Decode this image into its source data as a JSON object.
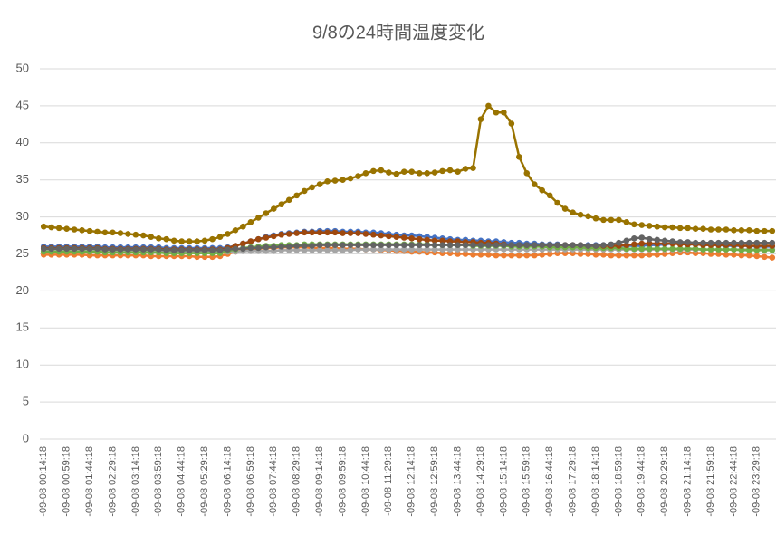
{
  "chart_data": {
    "type": "line",
    "title": "9/8の24時間温度変化",
    "categories": [
      "-09-08 00:14:18",
      null,
      null,
      "-09-08 00:59:18",
      null,
      null,
      "-09-08 01:44:18",
      null,
      null,
      "-09-08 02:29:18",
      null,
      null,
      "-09-08 03:14:18",
      null,
      null,
      "-09-08 03:59:18",
      null,
      null,
      "-09-08 04:44:18",
      null,
      null,
      "-09-08 05:29:18",
      null,
      null,
      "-09-08 06:14:18",
      null,
      null,
      "-09-08 06:59:18",
      null,
      null,
      "-09-08 07:44:18",
      null,
      null,
      "-09-08 08:29:18",
      null,
      null,
      "-09-08 09:14:18",
      null,
      null,
      "-09-08 09:59:18",
      null,
      null,
      "-09-08 10:44:18",
      null,
      null,
      "-09-08 11:29:18",
      null,
      null,
      "-09-08 12:14:18",
      null,
      null,
      "-09-08 12:59:18",
      null,
      null,
      "-09-08 13:44:18",
      null,
      null,
      "-09-08 14:29:18",
      null,
      null,
      "-09-08 15:14:18",
      null,
      null,
      "-09-08 15:59:18",
      null,
      null,
      "-09-08 16:44:18",
      null,
      null,
      "-09-08 17:29:18",
      null,
      null,
      "-09-08 18:14:18",
      null,
      null,
      "-09-08 18:59:18",
      null,
      null,
      "-09-08 19:44:18",
      null,
      null,
      "-09-08 20:29:18",
      null,
      null,
      "-09-08 21:14:18",
      null,
      null,
      "-09-08 21:59:18",
      null,
      null,
      "-09-08 22:44:18",
      null,
      null,
      "-09-08 23:29:18",
      null,
      null
    ],
    "ylim": [
      0,
      50
    ],
    "yticks": [
      0,
      5,
      10,
      15,
      20,
      25,
      30,
      35,
      40,
      45,
      50
    ],
    "grid": true,
    "series": [
      {
        "color": "#4472c4",
        "values": [
          26.0,
          26.0,
          26.0,
          26.0,
          26.0,
          26.0,
          26.0,
          26.0,
          25.9,
          25.9,
          25.9,
          25.9,
          25.9,
          25.9,
          25.9,
          25.9,
          25.8,
          25.8,
          25.8,
          25.8,
          25.8,
          25.8,
          25.8,
          25.8,
          25.9,
          26.1,
          26.4,
          26.7,
          27.0,
          27.3,
          27.5,
          27.7,
          27.8,
          27.9,
          28.0,
          28.0,
          28.1,
          28.1,
          28.1,
          28.0,
          28.0,
          28.0,
          27.9,
          27.9,
          27.8,
          27.7,
          27.6,
          27.5,
          27.5,
          27.4,
          27.3,
          27.2,
          27.1,
          27.0,
          26.9,
          26.9,
          26.8,
          26.8,
          26.7,
          26.7,
          26.6,
          26.5,
          26.5,
          26.4,
          26.4,
          26.3,
          26.3,
          26.3,
          26.2,
          26.2,
          26.2,
          26.2,
          26.2,
          26.2,
          26.1,
          26.1,
          26.1,
          26.1,
          26.1,
          26.2,
          26.2,
          26.3,
          26.4,
          26.4,
          26.3,
          26.3,
          26.2,
          26.2,
          26.2,
          26.1,
          26.1,
          26.1,
          26.1,
          26.0,
          26.0,
          26.0
        ]
      },
      {
        "color": "#ed7d31",
        "values": [
          24.9,
          24.9,
          24.9,
          24.9,
          24.9,
          24.9,
          24.8,
          24.8,
          24.8,
          24.8,
          24.8,
          24.8,
          24.8,
          24.8,
          24.7,
          24.7,
          24.7,
          24.7,
          24.7,
          24.7,
          24.6,
          24.6,
          24.6,
          24.7,
          25.0,
          25.3,
          25.5,
          25.6,
          25.7,
          25.8,
          25.8,
          25.9,
          25.9,
          25.9,
          25.9,
          25.8,
          25.8,
          25.8,
          25.8,
          25.7,
          25.7,
          25.7,
          25.6,
          25.6,
          25.5,
          25.5,
          25.4,
          25.4,
          25.3,
          25.3,
          25.2,
          25.2,
          25.1,
          25.1,
          25.0,
          25.0,
          24.9,
          24.9,
          24.9,
          24.8,
          24.8,
          24.8,
          24.8,
          24.8,
          24.8,
          24.9,
          25.0,
          25.1,
          25.1,
          25.1,
          25.0,
          25.0,
          24.9,
          24.9,
          24.8,
          24.8,
          24.8,
          24.8,
          24.8,
          24.9,
          24.9,
          25.0,
          25.1,
          25.2,
          25.2,
          25.1,
          25.1,
          25.0,
          25.0,
          24.9,
          24.9,
          24.8,
          24.8,
          24.7,
          24.6,
          24.5
        ]
      },
      {
        "color": "#a5a5a5",
        "values": [
          25.4,
          25.4,
          25.4,
          25.4,
          25.4,
          25.4,
          25.4,
          25.4,
          25.4,
          25.4,
          25.4,
          25.4,
          25.4,
          25.4,
          25.4,
          25.4,
          25.4,
          25.4,
          25.4,
          25.4,
          25.4,
          25.4,
          25.4,
          25.3,
          25.3,
          25.3,
          25.4,
          25.4,
          25.4,
          25.4,
          25.4,
          25.5,
          25.5,
          25.5,
          25.5,
          25.5,
          25.5,
          25.5,
          25.5,
          25.5,
          25.5,
          25.6,
          25.6,
          25.6,
          25.6,
          25.6,
          25.6,
          25.6,
          25.6,
          25.6,
          25.6,
          25.6,
          25.6,
          25.6,
          25.6,
          25.6,
          25.6,
          25.6,
          25.6,
          25.6,
          25.6,
          25.6,
          25.6,
          25.6,
          25.6,
          25.6,
          25.6,
          25.6,
          25.6,
          25.6,
          25.6,
          25.6,
          25.6,
          25.6,
          25.6,
          25.6,
          25.6,
          25.6,
          25.6,
          25.6,
          25.6,
          25.6,
          25.6,
          25.6,
          25.6,
          25.6,
          25.6,
          25.6,
          25.6,
          25.6,
          25.6,
          25.6,
          25.6,
          25.6,
          25.6,
          25.6
        ]
      },
      {
        "color": "#70ad47",
        "values": [
          25.3,
          25.3,
          25.3,
          25.3,
          25.3,
          25.3,
          25.3,
          25.3,
          25.2,
          25.2,
          25.2,
          25.2,
          25.2,
          25.2,
          25.2,
          25.2,
          25.1,
          25.1,
          25.1,
          25.1,
          25.1,
          25.1,
          25.1,
          25.1,
          25.4,
          25.6,
          25.8,
          25.9,
          26.0,
          26.1,
          26.1,
          26.2,
          26.2,
          26.2,
          26.3,
          26.3,
          26.3,
          26.3,
          26.3,
          26.3,
          26.3,
          26.3,
          26.3,
          26.3,
          26.3,
          26.3,
          26.3,
          26.3,
          26.3,
          26.3,
          26.3,
          26.2,
          26.2,
          26.2,
          26.2,
          26.2,
          26.1,
          26.1,
          26.1,
          26.1,
          26.1,
          26.0,
          26.0,
          26.0,
          26.0,
          26.0,
          25.9,
          25.9,
          25.9,
          25.9,
          25.9,
          25.8,
          25.8,
          25.8,
          25.8,
          25.8,
          25.7,
          25.7,
          25.7,
          25.7,
          25.7,
          25.7,
          25.7,
          25.7,
          25.7,
          25.7,
          25.6,
          25.6,
          25.6,
          25.6,
          25.6,
          25.5,
          25.5,
          25.5,
          25.5,
          25.5
        ]
      },
      {
        "color": "#9e480e",
        "values": [
          25.8,
          25.8,
          25.8,
          25.8,
          25.8,
          25.8,
          25.8,
          25.8,
          25.7,
          25.7,
          25.7,
          25.7,
          25.7,
          25.7,
          25.7,
          25.7,
          25.6,
          25.6,
          25.6,
          25.6,
          25.6,
          25.6,
          25.6,
          25.6,
          25.8,
          26.1,
          26.4,
          26.7,
          27.0,
          27.2,
          27.4,
          27.6,
          27.7,
          27.8,
          27.9,
          27.9,
          27.9,
          27.9,
          27.9,
          27.8,
          27.8,
          27.8,
          27.7,
          27.6,
          27.5,
          27.4,
          27.3,
          27.2,
          27.1,
          27.0,
          26.9,
          26.8,
          26.8,
          26.7,
          26.7,
          26.6,
          26.6,
          26.5,
          26.5,
          26.4,
          26.3,
          26.2,
          26.2,
          26.2,
          26.2,
          26.2,
          26.2,
          26.2,
          26.2,
          26.2,
          26.2,
          26.1,
          26.1,
          26.1,
          26.1,
          26.1,
          26.2,
          26.3,
          26.4,
          26.4,
          26.4,
          26.4,
          26.4,
          26.3,
          26.3,
          26.3,
          26.2,
          26.2,
          26.2,
          26.2,
          26.2,
          26.1,
          26.1,
          26.1,
          26.1,
          26.1
        ]
      },
      {
        "color": "#636363",
        "values": [
          25.7,
          25.7,
          25.7,
          25.7,
          25.7,
          25.7,
          25.7,
          25.7,
          25.6,
          25.6,
          25.6,
          25.6,
          25.6,
          25.6,
          25.6,
          25.6,
          25.5,
          25.5,
          25.5,
          25.5,
          25.5,
          25.5,
          25.5,
          25.5,
          25.6,
          25.7,
          25.7,
          25.8,
          25.8,
          25.9,
          25.9,
          26.0,
          26.0,
          26.1,
          26.1,
          26.1,
          26.2,
          26.2,
          26.2,
          26.2,
          26.2,
          26.2,
          26.2,
          26.2,
          26.2,
          26.2,
          26.2,
          26.2,
          26.2,
          26.2,
          26.2,
          26.2,
          26.2,
          26.2,
          26.2,
          26.2,
          26.2,
          26.2,
          26.2,
          26.2,
          26.2,
          26.2,
          26.2,
          26.2,
          26.2,
          26.2,
          26.2,
          26.2,
          26.2,
          26.2,
          26.2,
          26.1,
          26.1,
          26.2,
          26.3,
          26.5,
          26.8,
          27.1,
          27.2,
          27.0,
          26.9,
          26.8,
          26.7,
          26.6,
          26.6,
          26.5,
          26.5,
          26.5,
          26.5,
          26.5,
          26.5,
          26.5,
          26.5,
          26.5,
          26.5,
          26.5
        ]
      },
      {
        "color": "#997300",
        "values": [
          28.7,
          28.6,
          28.5,
          28.4,
          28.3,
          28.2,
          28.1,
          28.0,
          27.9,
          27.9,
          27.8,
          27.7,
          27.6,
          27.5,
          27.3,
          27.1,
          27.0,
          26.8,
          26.7,
          26.7,
          26.7,
          26.8,
          27.0,
          27.3,
          27.7,
          28.2,
          28.7,
          29.3,
          29.9,
          30.5,
          31.1,
          31.7,
          32.3,
          32.9,
          33.5,
          34.0,
          34.4,
          34.8,
          34.9,
          35.0,
          35.2,
          35.5,
          35.9,
          36.2,
          36.3,
          36.0,
          35.8,
          36.1,
          36.1,
          35.9,
          35.9,
          36.0,
          36.2,
          36.3,
          36.1,
          36.5,
          36.6,
          43.2,
          45.0,
          44.1,
          44.1,
          42.6,
          38.1,
          35.9,
          34.4,
          33.6,
          32.9,
          31.9,
          31.1,
          30.6,
          30.3,
          30.1,
          29.8,
          29.6,
          29.6,
          29.6,
          29.3,
          29.0,
          28.9,
          28.8,
          28.7,
          28.6,
          28.6,
          28.5,
          28.5,
          28.4,
          28.4,
          28.3,
          28.3,
          28.3,
          28.2,
          28.2,
          28.2,
          28.1,
          28.1,
          28.1
        ]
      }
    ]
  }
}
